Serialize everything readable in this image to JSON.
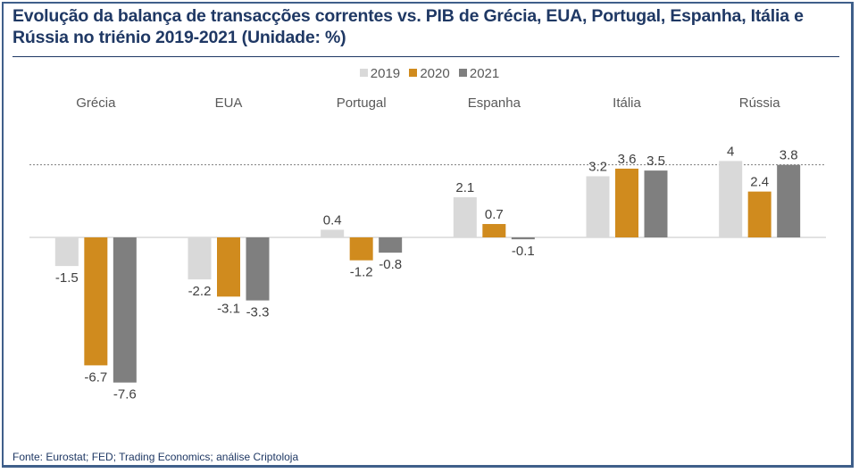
{
  "chart_data": {
    "type": "bar",
    "title": "Evolução da balança de transacções correntes vs. PIB de Grécia, EUA, Portugal, Espanha, Itália e Rússia no triénio 2019-2021 (Unidade: %)",
    "categories": [
      "Grécia",
      "EUA",
      "Portugal",
      "Espanha",
      "Itália",
      "Rússia"
    ],
    "series": [
      {
        "name": "2019",
        "color": "#d9d9d9",
        "values": [
          -1.5,
          -2.2,
          0.4,
          2.1,
          3.2,
          4
        ]
      },
      {
        "name": "2020",
        "color": "#d08b1e",
        "values": [
          -6.7,
          -3.1,
          -1.2,
          0.7,
          3.6,
          2.4
        ]
      },
      {
        "name": "2021",
        "color": "#7f7f7f",
        "values": [
          -7.6,
          -3.3,
          -0.8,
          -0.1,
          3.5,
          3.8
        ]
      }
    ],
    "data_labels": [
      [
        "-1.5",
        "-2.2",
        "0.4",
        "2.1",
        "3.2",
        "4"
      ],
      [
        "-6.7",
        "-3.1",
        "-1.2",
        "0.7",
        "3.6",
        "2.4"
      ],
      [
        "-7.6",
        "-3.3",
        "-0.8",
        "-0.1",
        "3.5",
        "3.8"
      ]
    ],
    "reference_line": {
      "value": 3.8,
      "style": "dashed"
    },
    "xlabel": "",
    "ylabel": "",
    "ylim": [
      -8,
      4.5
    ],
    "grid": false,
    "legend_position": "top-center",
    "category_labels_position": "top"
  },
  "source": "Fonte: Eurostat; FED;  Trading Economics; análise Criptoloja"
}
